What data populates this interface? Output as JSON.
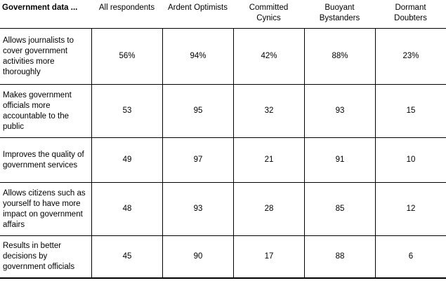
{
  "colors": {
    "background": "#ffffff",
    "text": "#000000",
    "border": "#000000"
  },
  "chart_data": {
    "type": "table",
    "title": "Government data ...",
    "columns": [
      "All respondents",
      "Ardent Optimists",
      "Committed Cynics",
      "Buoyant Bystanders",
      "Dormant Doubters"
    ],
    "rows": [
      {
        "label": "Allows journalists to cover government activities more thoroughly",
        "values": [
          "56%",
          "94%",
          "42%",
          "88%",
          "23%"
        ]
      },
      {
        "label": "Makes government officials more accountable to the public",
        "values": [
          "53",
          "95",
          "32",
          "93",
          "15"
        ]
      },
      {
        "label": "Improves the quality of government services",
        "values": [
          "49",
          "97",
          "21",
          "91",
          "10"
        ]
      },
      {
        "label": "Allows citizens such as yourself to have more impact on government affairs",
        "values": [
          "48",
          "93",
          "28",
          "85",
          "12"
        ]
      },
      {
        "label": "Results in better decisions by government officials",
        "values": [
          "45",
          "90",
          "17",
          "88",
          "6"
        ]
      }
    ]
  }
}
